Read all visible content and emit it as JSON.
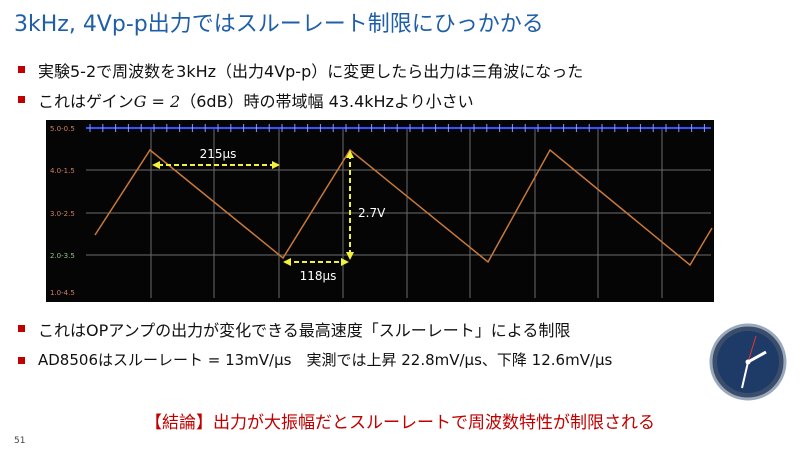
{
  "title": "3kHz, 4Vp-p出力ではスルーレート制限にひっかかる",
  "bullets_top": [
    {
      "text": "実験5-2で周波数を3kHz（出力4Vp-p）に変更したら出力は三角波になった"
    },
    {
      "before": "これはゲイン",
      "math": "G = 2",
      "after": "（6dB）時の帯域幅 43.4kHzより小さい"
    }
  ],
  "scope": {
    "axis_labels": [
      "5.0-0.5",
      "4.0-1.5",
      "3.0-2.5",
      "2.0-3.5",
      "1.0-4.5"
    ],
    "annotations": {
      "period": "215μs",
      "amplitude": "2.7V",
      "fall": "118μs"
    }
  },
  "bullets_bottom": [
    "これはOPアンプの出力が変化できる最高速度「スルーレート」による制限",
    "AD8506はスルーレート = 13mV/μs　実測では上昇 22.8mV/μs、下降 12.6mV/μs"
  ],
  "conclusion": "【結論】出力が大振幅だとスルーレートで周波数特性が制限される",
  "page_number": "51"
}
